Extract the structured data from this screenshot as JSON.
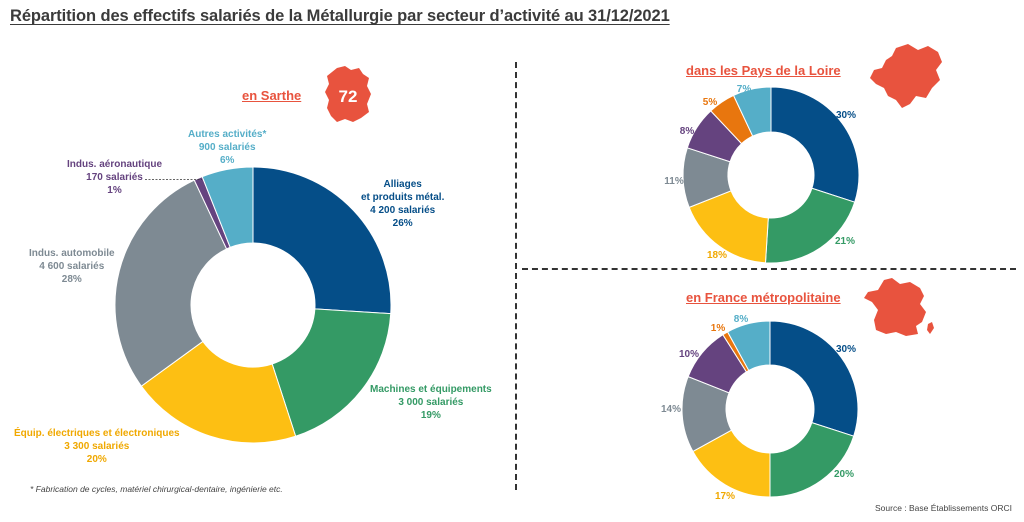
{
  "title": "Répartition des effectifs salariés de la Métallurgie par secteur d’activité au 31/12/2021",
  "footnote": "* Fabrication de cycles, matériel chirurgical-dentaire, ingénierie etc.",
  "source": "Source : Base Établissements ORCI",
  "sarthe_badge": "72",
  "colors": {
    "alliages": "#054e88",
    "machines": "#349a65",
    "equip": "#fdbf13",
    "auto": "#7e8a93",
    "aero": "#65437f",
    "autres": "#55aec8",
    "accent": "#e8533e"
  },
  "chart_data": [
    {
      "type": "pie",
      "title": "en Sarthe",
      "slices": [
        {
          "name": "Alliages\net produits métal.",
          "value": 26,
          "pct_label": "26%",
          "count_label": "4 200 salariés"
        },
        {
          "name": "Machines et équipements",
          "value": 19,
          "pct_label": "19%",
          "count_label": "3 000 salariés"
        },
        {
          "name": "Équip. électriques et électroniques",
          "value": 20,
          "pct_label": "20%",
          "count_label": "3 300 salariés"
        },
        {
          "name": "Indus. automobile",
          "value": 28,
          "pct_label": "28%",
          "count_label": "4 600 salariés"
        },
        {
          "name": "Indus. aéronautique",
          "value": 1,
          "pct_label": "1%",
          "count_label": "170 salariés"
        },
        {
          "name": "Autres activités*",
          "value": 6,
          "pct_label": "6%",
          "count_label": "900 salariés"
        }
      ]
    },
    {
      "type": "pie",
      "title": "dans les Pays de la Loire",
      "slices": [
        {
          "value": 30,
          "pct_label": "30%"
        },
        {
          "value": 21,
          "pct_label": "21%"
        },
        {
          "value": 18,
          "pct_label": "18%"
        },
        {
          "value": 11,
          "pct_label": "11%"
        },
        {
          "value": 8,
          "pct_label": "8%"
        },
        {
          "value": 5,
          "pct_label": "5%"
        },
        {
          "value": 7,
          "pct_label": "7%"
        }
      ]
    },
    {
      "type": "pie",
      "title": "en France métropolitaine",
      "slices": [
        {
          "value": 30,
          "pct_label": "30%"
        },
        {
          "value": 20,
          "pct_label": "20%"
        },
        {
          "value": 17,
          "pct_label": "17%"
        },
        {
          "value": 14,
          "pct_label": "14%"
        },
        {
          "value": 10,
          "pct_label": "10%"
        },
        {
          "value": 1,
          "pct_label": "1%"
        },
        {
          "value": 8,
          "pct_label": "8%"
        }
      ]
    }
  ]
}
